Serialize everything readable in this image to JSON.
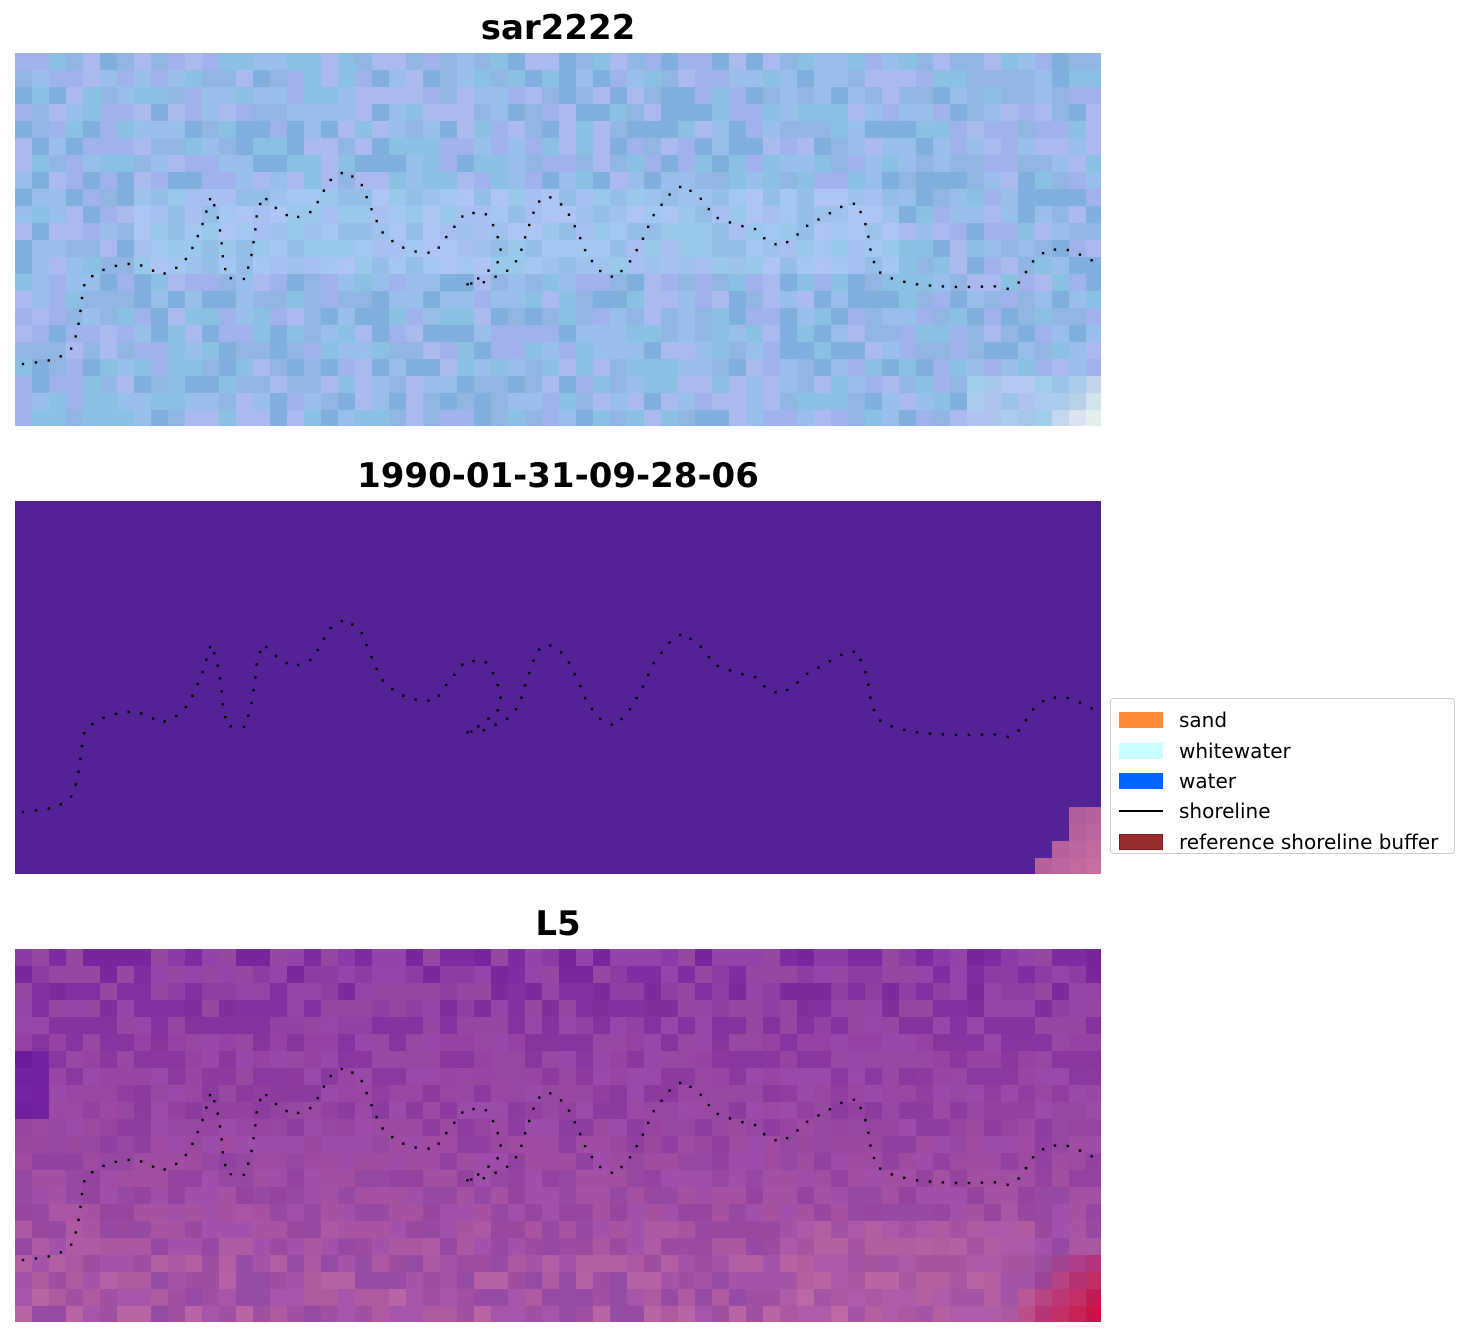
{
  "panels": [
    {
      "title": "sar2222",
      "colormap": "blue"
    },
    {
      "title": "1990-01-31-09-28-06",
      "colormap": "flat"
    },
    {
      "title": "L5",
      "colormap": "magenta"
    }
  ],
  "legend": {
    "items": [
      {
        "label": "sand",
        "type": "patch",
        "color": "#ff8c3a"
      },
      {
        "label": "whitewater",
        "type": "patch",
        "color": "#c8ffff"
      },
      {
        "label": "water",
        "type": "patch",
        "color": "#0064ff"
      },
      {
        "label": "shoreline",
        "type": "line",
        "color": "#000000"
      },
      {
        "label": "reference shoreline buffer",
        "type": "patch",
        "color": "#9b2c2c"
      }
    ]
  },
  "colors": {
    "classification_background": "#532396",
    "buffer_corner": "#c06898",
    "shoreline_points": "#000000"
  }
}
